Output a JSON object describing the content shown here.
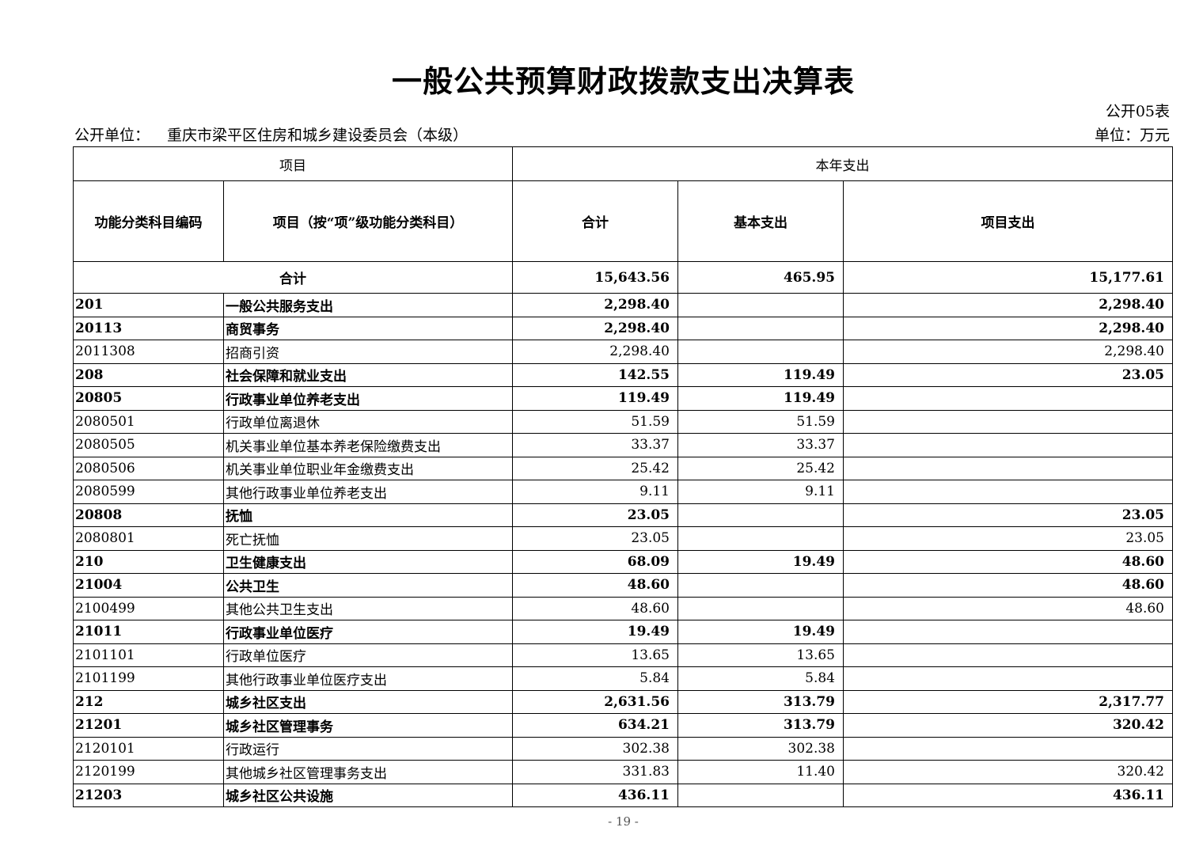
{
  "title": "一般公共预算财政拨款支出决算表",
  "form_no": "公开05表",
  "unit_label": "公开单位：",
  "unit_name": "重庆市梁平区住房和城乡建设委员会（本级）",
  "currency_unit": "单位：万元",
  "headers": {
    "project": "项目",
    "current_year": "本年支出",
    "code": "功能分类科目编码",
    "item": "项目（按“项”级功能分类科目）",
    "total": "合计",
    "basic": "基本支出",
    "project_exp": "项目支出"
  },
  "total_row": {
    "label": "合计",
    "total": "15,643.56",
    "basic": "465.95",
    "project": "15,177.61"
  },
  "rows": [
    {
      "code": "201",
      "name": "一般公共服务支出",
      "total": "2,298.40",
      "basic": "",
      "project": "2,298.40",
      "bold": true
    },
    {
      "code": "20113",
      "name": "商贸事务",
      "total": "2,298.40",
      "basic": "",
      "project": "2,298.40",
      "bold": true
    },
    {
      "code": "2011308",
      "name": "招商引资",
      "total": "2,298.40",
      "basic": "",
      "project": "2,298.40",
      "bold": false
    },
    {
      "code": "208",
      "name": "社会保障和就业支出",
      "total": "142.55",
      "basic": "119.49",
      "project": "23.05",
      "bold": true
    },
    {
      "code": "20805",
      "name": "行政事业单位养老支出",
      "total": "119.49",
      "basic": "119.49",
      "project": "",
      "bold": true
    },
    {
      "code": "2080501",
      "name": "行政单位离退休",
      "total": "51.59",
      "basic": "51.59",
      "project": "",
      "bold": false
    },
    {
      "code": "2080505",
      "name": "机关事业单位基本养老保险缴费支出",
      "total": "33.37",
      "basic": "33.37",
      "project": "",
      "bold": false
    },
    {
      "code": "2080506",
      "name": "机关事业单位职业年金缴费支出",
      "total": "25.42",
      "basic": "25.42",
      "project": "",
      "bold": false
    },
    {
      "code": "2080599",
      "name": "其他行政事业单位养老支出",
      "total": "9.11",
      "basic": "9.11",
      "project": "",
      "bold": false
    },
    {
      "code": "20808",
      "name": "抚恤",
      "total": "23.05",
      "basic": "",
      "project": "23.05",
      "bold": true
    },
    {
      "code": "2080801",
      "name": "死亡抚恤",
      "total": "23.05",
      "basic": "",
      "project": "23.05",
      "bold": false
    },
    {
      "code": "210",
      "name": "卫生健康支出",
      "total": "68.09",
      "basic": "19.49",
      "project": "48.60",
      "bold": true
    },
    {
      "code": "21004",
      "name": "公共卫生",
      "total": "48.60",
      "basic": "",
      "project": "48.60",
      "bold": true
    },
    {
      "code": "2100499",
      "name": "其他公共卫生支出",
      "total": "48.60",
      "basic": "",
      "project": "48.60",
      "bold": false
    },
    {
      "code": "21011",
      "name": "行政事业单位医疗",
      "total": "19.49",
      "basic": "19.49",
      "project": "",
      "bold": true
    },
    {
      "code": "2101101",
      "name": "行政单位医疗",
      "total": "13.65",
      "basic": "13.65",
      "project": "",
      "bold": false
    },
    {
      "code": "2101199",
      "name": "其他行政事业单位医疗支出",
      "total": "5.84",
      "basic": "5.84",
      "project": "",
      "bold": false
    },
    {
      "code": "212",
      "name": "城乡社区支出",
      "total": "2,631.56",
      "basic": "313.79",
      "project": "2,317.77",
      "bold": true
    },
    {
      "code": "21201",
      "name": "城乡社区管理事务",
      "total": "634.21",
      "basic": "313.79",
      "project": "320.42",
      "bold": true
    },
    {
      "code": "2120101",
      "name": "行政运行",
      "total": "302.38",
      "basic": "302.38",
      "project": "",
      "bold": false
    },
    {
      "code": "2120199",
      "name": "其他城乡社区管理事务支出",
      "total": "331.83",
      "basic": "11.40",
      "project": "320.42",
      "bold": false
    },
    {
      "code": "21203",
      "name": "城乡社区公共设施",
      "total": "436.11",
      "basic": "",
      "project": "436.11",
      "bold": true
    }
  ],
  "page_number": "- 19 -"
}
